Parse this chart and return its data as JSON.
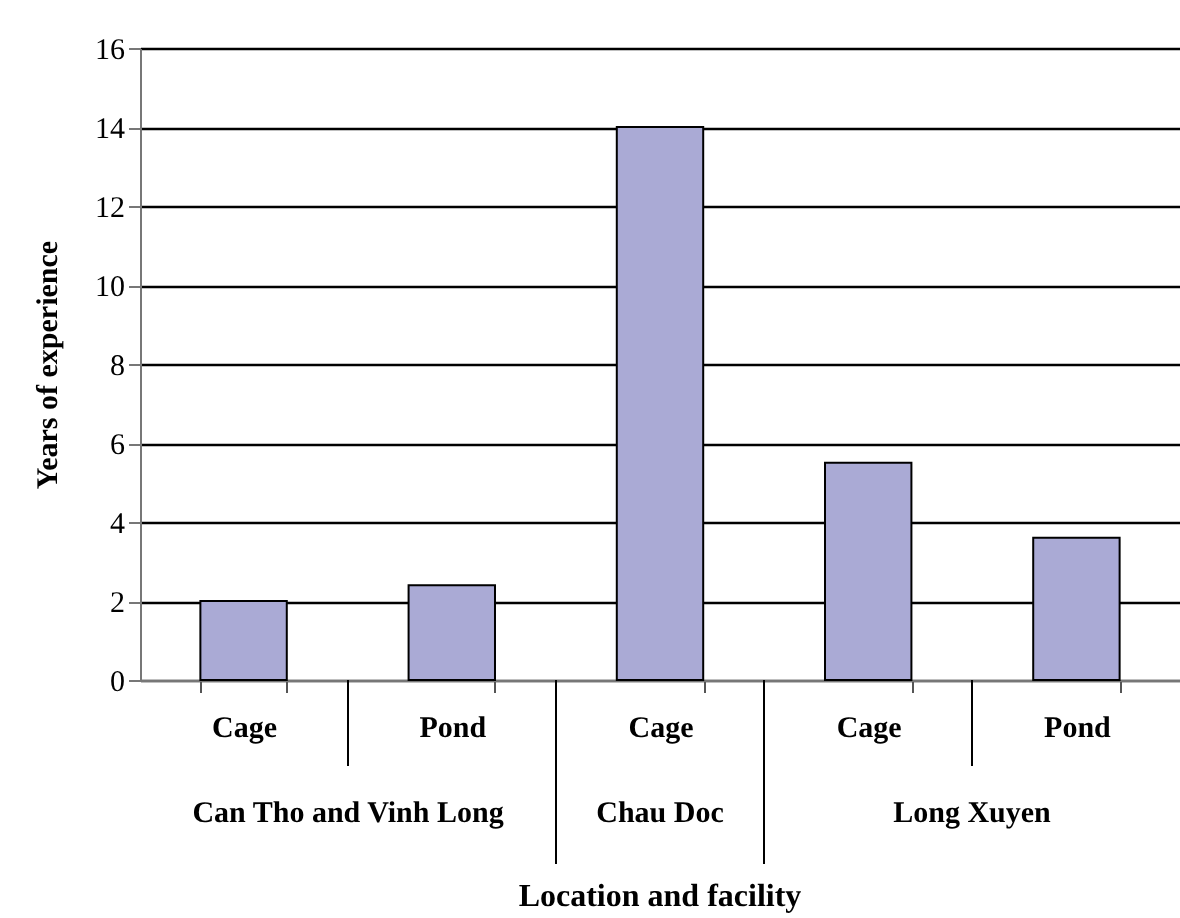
{
  "chart_data": {
    "type": "bar",
    "categories": [
      "Cage",
      "Pond",
      "Cage",
      "Cage",
      "Pond"
    ],
    "values": [
      2.0,
      2.4,
      14.0,
      5.5,
      3.6
    ],
    "color": "#aaaad5",
    "ylim": [
      0,
      16
    ],
    "yticks": [
      0,
      2,
      4,
      6,
      8,
      10,
      12,
      14,
      16
    ],
    "grid": "y",
    "xlabel": "Location and facility",
    "ylabel": "Years of experience",
    "annotations": [
      "Can Tho and Vinh Long",
      "Chau Doc",
      "Long Xuyen"
    ]
  }
}
